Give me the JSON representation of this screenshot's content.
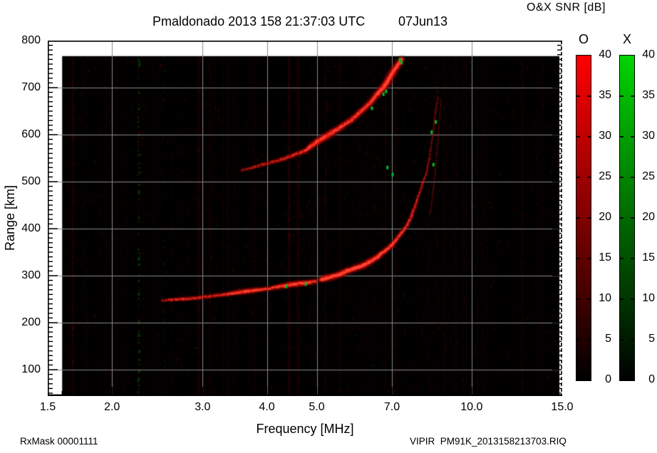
{
  "header": {
    "title": "Pmaldonado 2013 158 21:37:03 UTC",
    "date": "07Jun13",
    "colorbar_title": "O&X SNR [dB]"
  },
  "footer": {
    "left": "RxMask 00001111",
    "right": "VIPIR  PM91K_2013158213703.RIQ"
  },
  "chart_data": {
    "type": "heatmap",
    "subtype": "ionogram",
    "title": "Pmaldonado 2013 158 21:37:03 UTC",
    "date_label": "07Jun13",
    "x_axis": {
      "label": "Frequency [MHz]",
      "scale": "log",
      "min": 1.5,
      "max": 15.0,
      "major_ticks": [
        1.5,
        2,
        3,
        4,
        5,
        7,
        10,
        15
      ],
      "tick_labels": [
        "1.5",
        "2.0",
        "3.0",
        "4.0",
        "5.0",
        "7.0",
        "10.0",
        "15.0"
      ],
      "grid_ticks": [
        2,
        3,
        4,
        5,
        7,
        10
      ],
      "minor_ticks": [
        1.6,
        1.7,
        1.8,
        1.9,
        6,
        8,
        9,
        11,
        12,
        13,
        14
      ]
    },
    "y_axis": {
      "label": "Range [km]",
      "scale": "linear",
      "min": 44,
      "max": 800,
      "major_ticks": [
        800,
        700,
        600,
        500,
        400,
        300,
        200,
        100
      ],
      "tick_labels": [
        "800",
        "700",
        "600",
        "500",
        "400",
        "300",
        "200",
        "100"
      ],
      "grid_ticks": [
        100,
        200,
        300,
        400,
        500,
        600,
        700
      ],
      "minor_step": 10
    },
    "colorbars": [
      {
        "name": "O",
        "units": "dB",
        "min": 0,
        "max": 40,
        "tick_step": 5,
        "color_max": "#ff0000",
        "color_min": "#000000"
      },
      {
        "name": "X",
        "units": "dB",
        "min": 0,
        "max": 40,
        "tick_step": 5,
        "color_max": "#00d400",
        "color_min": "#000000"
      }
    ],
    "data_extent": {
      "freq_min": 1.6,
      "freq_max": 15.0,
      "range_min_km": 44,
      "range_max_km": 767
    },
    "traces": [
      {
        "name": "F-trace-1hop-lower",
        "mode": "O",
        "points": [
          [
            2.5,
            247,
            3,
            0.4
          ],
          [
            2.62,
            249,
            3.5,
            0.5
          ],
          [
            2.75,
            250,
            4,
            0.55
          ],
          [
            2.9,
            252,
            4,
            0.5
          ],
          [
            3.05,
            255,
            4,
            0.45
          ],
          [
            3.2,
            258,
            4,
            0.5
          ],
          [
            3.35,
            261,
            4.5,
            0.55
          ],
          [
            3.5,
            264,
            5,
            0.65
          ],
          [
            3.65,
            267,
            5.5,
            0.75
          ],
          [
            3.8,
            269,
            5,
            0.65
          ],
          [
            3.95,
            271,
            4.5,
            0.55
          ],
          [
            4.1,
            274,
            4.5,
            0.6
          ],
          [
            4.25,
            277,
            5,
            0.7
          ],
          [
            4.4,
            280,
            5.5,
            0.85
          ],
          [
            4.55,
            282,
            5.5,
            0.85
          ],
          [
            4.7,
            284,
            5.5,
            0.8
          ],
          [
            4.85,
            286,
            5,
            0.7
          ],
          [
            5.0,
            288,
            4.5,
            0.55
          ]
        ]
      },
      {
        "name": "F-trace-1hop-upper",
        "mode": "O",
        "points": [
          [
            5.08,
            291,
            5.5,
            0.9
          ],
          [
            5.2,
            294,
            6,
            0.95
          ],
          [
            5.36,
            298,
            6,
            0.95
          ],
          [
            5.55,
            303,
            6,
            0.9
          ],
          [
            5.7,
            309,
            6,
            0.9
          ],
          [
            5.9,
            315,
            6,
            0.92
          ],
          [
            6.13,
            321,
            6,
            0.95
          ],
          [
            6.35,
            330,
            6,
            0.9
          ],
          [
            6.55,
            339,
            5.5,
            0.85
          ],
          [
            6.75,
            351,
            5,
            0.8
          ],
          [
            7.0,
            365,
            5,
            0.75
          ],
          [
            7.15,
            378,
            4.5,
            0.65
          ],
          [
            7.32,
            392,
            4.5,
            0.6
          ],
          [
            7.5,
            408,
            4,
            0.55
          ],
          [
            7.63,
            426,
            4,
            0.5
          ],
          [
            7.78,
            450,
            3.5,
            0.45
          ],
          [
            7.92,
            476,
            3,
            0.4
          ],
          [
            8.05,
            500,
            3,
            0.38
          ],
          [
            8.17,
            517,
            2.5,
            0.36
          ],
          [
            8.26,
            545,
            2.5,
            0.34
          ],
          [
            8.33,
            570,
            2,
            0.32
          ],
          [
            8.4,
            598,
            2,
            0.3
          ],
          [
            8.45,
            623,
            2,
            0.28
          ],
          [
            8.5,
            645,
            2,
            0.26
          ],
          [
            8.55,
            664,
            2,
            0.22
          ],
          [
            8.6,
            680,
            2,
            0.16
          ]
        ]
      },
      {
        "name": "F-trace-1hop-x-branch",
        "mode": "X-split",
        "points": [
          [
            8.3,
            430,
            1.5,
            0.25
          ],
          [
            8.4,
            470,
            1.5,
            0.27
          ],
          [
            8.5,
            520,
            1.5,
            0.28
          ],
          [
            8.56,
            560,
            1.5,
            0.26
          ],
          [
            8.62,
            600,
            1.5,
            0.24
          ],
          [
            8.68,
            645,
            1.5,
            0.2
          ],
          [
            8.72,
            678,
            1.5,
            0.15
          ]
        ]
      },
      {
        "name": "F-trace-2hop",
        "mode": "O",
        "points": [
          [
            3.57,
            524,
            3,
            0.28
          ],
          [
            3.75,
            530,
            3.5,
            0.3
          ],
          [
            3.92,
            536,
            4,
            0.33
          ],
          [
            4.1,
            542,
            4,
            0.34
          ],
          [
            4.3,
            548,
            4.5,
            0.38
          ],
          [
            4.5,
            556,
            4.5,
            0.42
          ],
          [
            4.74,
            565,
            5,
            0.5
          ],
          [
            4.9,
            577,
            6,
            0.6
          ],
          [
            5.0,
            585,
            6.5,
            0.7
          ],
          [
            5.15,
            593,
            6.5,
            0.68
          ],
          [
            5.35,
            604,
            6.5,
            0.62
          ],
          [
            5.6,
            618,
            6,
            0.55
          ],
          [
            5.85,
            632,
            6,
            0.5
          ],
          [
            6.1,
            650,
            6,
            0.5
          ],
          [
            6.35,
            668,
            6,
            0.55
          ],
          [
            6.6,
            690,
            6.5,
            0.65
          ],
          [
            6.8,
            706,
            7,
            0.75
          ],
          [
            7.0,
            730,
            7,
            0.72
          ],
          [
            7.18,
            748,
            6.5,
            0.65
          ],
          [
            7.33,
            762,
            6,
            0.55
          ]
        ]
      }
    ],
    "x_mode_marks": [
      [
        4.36,
        277
      ],
      [
        4.76,
        282
      ],
      [
        6.4,
        656
      ],
      [
        6.74,
        686
      ],
      [
        6.82,
        692
      ],
      [
        7.25,
        759
      ],
      [
        7.31,
        753
      ],
      [
        8.36,
        605
      ],
      [
        8.43,
        536
      ],
      [
        8.52,
        627
      ],
      [
        6.86,
        530
      ],
      [
        7.02,
        515
      ]
    ],
    "rfi_stripes": [
      {
        "freq": 2.25,
        "color": "#00aa00",
        "alpha": 0.3,
        "width": 3,
        "style": "dotted"
      },
      {
        "freq": 2.52,
        "color": "#007700",
        "alpha": 0.12,
        "width": 3,
        "style": "dotted"
      },
      {
        "freq": 1.68,
        "color": "#990000",
        "alpha": 0.12,
        "width": 3,
        "style": "solid"
      },
      {
        "freq": 2.95,
        "color": "#880000",
        "alpha": 0.1,
        "width": 4,
        "style": "solid"
      },
      {
        "freq": 3.1,
        "color": "#880000",
        "alpha": 0.08,
        "width": 3,
        "style": "solid"
      },
      {
        "freq": 3.35,
        "color": "#880000",
        "alpha": 0.07,
        "width": 2,
        "style": "solid"
      },
      {
        "freq": 4.42,
        "color": "#aa0000",
        "alpha": 0.14,
        "width": 3,
        "style": "solid"
      },
      {
        "freq": 4.6,
        "color": "#990000",
        "alpha": 0.1,
        "width": 4,
        "style": "solid"
      },
      {
        "freq": 5.2,
        "color": "#880000",
        "alpha": 0.08,
        "width": 3,
        "style": "solid"
      },
      {
        "freq": 5.55,
        "color": "#990000",
        "alpha": 0.08,
        "width": 3,
        "style": "solid"
      },
      {
        "freq": 6.8,
        "color": "#990000",
        "alpha": 0.1,
        "width": 2,
        "style": "solid"
      },
      {
        "freq": 7.1,
        "color": "#990000",
        "alpha": 0.1,
        "width": 2,
        "style": "solid"
      },
      {
        "freq": 8.9,
        "color": "#770000",
        "alpha": 0.06,
        "width": 3,
        "style": "solid"
      },
      {
        "freq": 10.5,
        "color": "#770000",
        "alpha": 0.05,
        "width": 3,
        "style": "solid"
      },
      {
        "freq": 12.5,
        "color": "#770000",
        "alpha": 0.05,
        "width": 3,
        "style": "solid"
      }
    ],
    "noise": {
      "background": "#000000",
      "speckle_color": "#aa0000",
      "speckle_count": 4200,
      "green_fraction": 0.05,
      "seed": 7
    },
    "colors": {
      "grid": "#8a8a8a",
      "frame": "#000000",
      "trace_red": "#ff3020",
      "x_mode_green": "#00bb22"
    },
    "legend_position": "right"
  }
}
